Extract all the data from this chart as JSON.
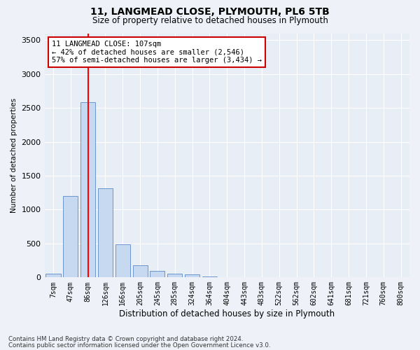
{
  "title1": "11, LANGMEAD CLOSE, PLYMOUTH, PL6 5TB",
  "title2": "Size of property relative to detached houses in Plymouth",
  "xlabel": "Distribution of detached houses by size in Plymouth",
  "ylabel": "Number of detached properties",
  "bar_labels": [
    "7sqm",
    "47sqm",
    "86sqm",
    "126sqm",
    "166sqm",
    "205sqm",
    "245sqm",
    "285sqm",
    "324sqm",
    "364sqm",
    "404sqm",
    "443sqm",
    "483sqm",
    "522sqm",
    "562sqm",
    "602sqm",
    "641sqm",
    "681sqm",
    "721sqm",
    "760sqm",
    "800sqm"
  ],
  "bar_values": [
    50,
    1200,
    2580,
    1310,
    490,
    175,
    100,
    50,
    40,
    10,
    5,
    2,
    2,
    0,
    0,
    0,
    0,
    0,
    0,
    0,
    0
  ],
  "bar_color": "#c6d9f0",
  "bar_edgecolor": "#5a8ac6",
  "ylim": [
    0,
    3600
  ],
  "yticks": [
    0,
    500,
    1000,
    1500,
    2000,
    2500,
    3000,
    3500
  ],
  "annotation_text": "11 LANGMEAD CLOSE: 107sqm\n← 42% of detached houses are smaller (2,546)\n57% of semi-detached houses are larger (3,434) →",
  "annotation_box_color": "#ffffff",
  "annotation_box_edgecolor": "#cc0000",
  "footer1": "Contains HM Land Registry data © Crown copyright and database right 2024.",
  "footer2": "Contains public sector information licensed under the Open Government Licence v3.0.",
  "bg_color": "#eef2f8",
  "plot_bg_color": "#e8eef6",
  "grid_color": "#ffffff"
}
